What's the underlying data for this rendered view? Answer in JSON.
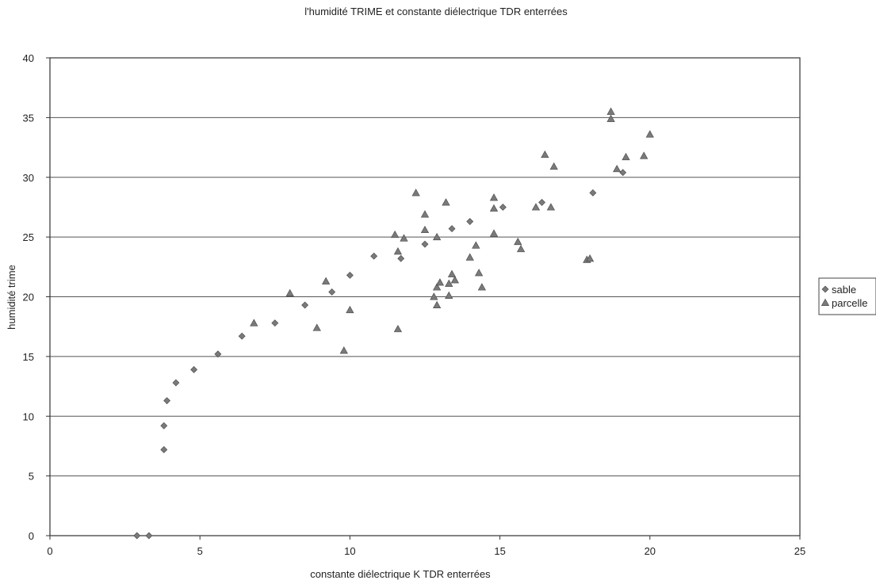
{
  "chart_data": {
    "type": "scatter",
    "title": "l'humidité TRIME et constante diélectrique TDR enterrées",
    "xlabel": "constante diélectrique  K TDR enterrées",
    "ylabel": "humidité trime",
    "xlim": [
      0,
      25
    ],
    "ylim": [
      0,
      40
    ],
    "xticks": [
      0,
      5,
      10,
      15,
      20,
      25
    ],
    "yticks": [
      0,
      5,
      10,
      15,
      20,
      25,
      30,
      35,
      40
    ],
    "grid": "horizontal",
    "legend_position": "right",
    "series": [
      {
        "name": "sable",
        "marker": "diamond",
        "color": "#7a7a7a",
        "points": [
          [
            2.9,
            0
          ],
          [
            3.3,
            0
          ],
          [
            3.8,
            7.2
          ],
          [
            3.8,
            9.2
          ],
          [
            3.9,
            11.3
          ],
          [
            4.2,
            12.8
          ],
          [
            4.8,
            13.9
          ],
          [
            5.6,
            15.2
          ],
          [
            6.4,
            16.7
          ],
          [
            7.5,
            17.8
          ],
          [
            8.5,
            19.3
          ],
          [
            9.4,
            20.4
          ],
          [
            10.0,
            21.8
          ],
          [
            10.8,
            23.4
          ],
          [
            11.7,
            23.2
          ],
          [
            12.5,
            24.4
          ],
          [
            13.4,
            25.7
          ],
          [
            14.0,
            26.3
          ],
          [
            15.1,
            27.5
          ],
          [
            16.4,
            27.9
          ],
          [
            18.1,
            28.7
          ],
          [
            19.1,
            30.4
          ]
        ]
      },
      {
        "name": "parcelle",
        "marker": "triangle",
        "color": "#7a7a7a",
        "points": [
          [
            8.0,
            20.3
          ],
          [
            6.8,
            17.8
          ],
          [
            8.9,
            17.4
          ],
          [
            9.2,
            21.3
          ],
          [
            9.8,
            15.5
          ],
          [
            10.0,
            18.9
          ],
          [
            11.5,
            25.2
          ],
          [
            11.6,
            23.8
          ],
          [
            11.6,
            17.3
          ],
          [
            11.8,
            24.9
          ],
          [
            12.2,
            28.7
          ],
          [
            12.5,
            26.9
          ],
          [
            12.5,
            25.6
          ],
          [
            12.8,
            20.0
          ],
          [
            12.9,
            20.8
          ],
          [
            12.9,
            19.3
          ],
          [
            12.9,
            25.0
          ],
          [
            13.0,
            21.2
          ],
          [
            13.2,
            27.9
          ],
          [
            13.3,
            20.1
          ],
          [
            13.3,
            21.1
          ],
          [
            13.4,
            21.9
          ],
          [
            13.5,
            21.4
          ],
          [
            14.0,
            23.3
          ],
          [
            14.2,
            24.3
          ],
          [
            14.3,
            22.0
          ],
          [
            14.4,
            20.8
          ],
          [
            14.8,
            28.3
          ],
          [
            14.8,
            27.4
          ],
          [
            14.8,
            25.3
          ],
          [
            15.6,
            24.6
          ],
          [
            15.7,
            24.0
          ],
          [
            16.2,
            27.5
          ],
          [
            16.5,
            31.9
          ],
          [
            16.7,
            27.5
          ],
          [
            16.8,
            30.9
          ],
          [
            17.9,
            23.1
          ],
          [
            18.0,
            23.2
          ],
          [
            18.7,
            35.5
          ],
          [
            18.7,
            34.9
          ],
          [
            18.9,
            30.7
          ],
          [
            19.2,
            31.7
          ],
          [
            19.8,
            31.8
          ],
          [
            20.0,
            33.6
          ]
        ]
      }
    ]
  }
}
